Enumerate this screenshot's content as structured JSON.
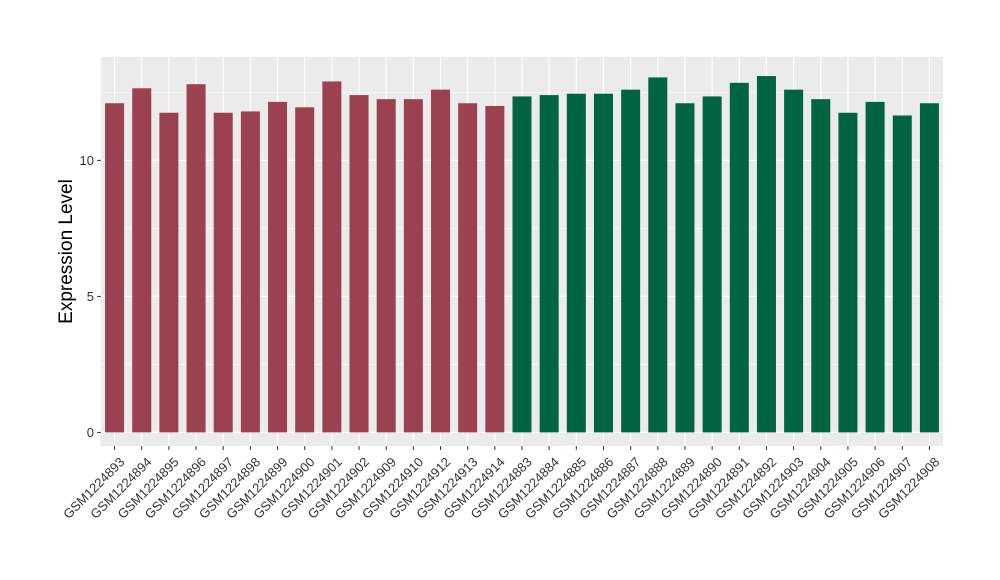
{
  "chart_data": {
    "type": "bar",
    "ylabel": "Expression Level",
    "xlabel": "",
    "title": "",
    "ylim": [
      -0.5,
      13.8
    ],
    "yticks": [
      0,
      5,
      10
    ],
    "ytick_labels": [
      "0",
      "5",
      "10"
    ],
    "grid": true,
    "legend": "none",
    "categories": [
      "GSM1224893",
      "GSM1224894",
      "GSM1224895",
      "GSM1224896",
      "GSM1224897",
      "GSM1224898",
      "GSM1224899",
      "GSM1224900",
      "GSM1224901",
      "GSM1224902",
      "GSM1224909",
      "GSM1224910",
      "GSM1224912",
      "GSM1224913",
      "GSM1224914",
      "GSM1224883",
      "GSM1224884",
      "GSM1224885",
      "GSM1224886",
      "GSM1224887",
      "GSM1224888",
      "GSM1224889",
      "GSM1224890",
      "GSM1224891",
      "GSM1224892",
      "GSM1224903",
      "GSM1224904",
      "GSM1224905",
      "GSM1224906",
      "GSM1224907",
      "GSM1224908"
    ],
    "values": [
      12.1,
      12.65,
      11.75,
      12.8,
      11.75,
      11.8,
      12.15,
      11.95,
      12.9,
      12.4,
      12.25,
      12.25,
      12.6,
      12.1,
      12.0,
      12.35,
      12.4,
      12.45,
      12.45,
      12.6,
      13.05,
      12.1,
      12.35,
      12.85,
      13.1,
      12.6,
      12.25,
      11.75,
      12.15,
      11.65,
      12.1
    ],
    "groups": [
      0,
      0,
      0,
      0,
      0,
      0,
      0,
      0,
      0,
      0,
      0,
      0,
      0,
      0,
      0,
      1,
      1,
      1,
      1,
      1,
      1,
      1,
      1,
      1,
      1,
      1,
      1,
      1,
      1,
      1,
      1
    ],
    "colors": [
      "#9b4150",
      "#016544"
    ],
    "panel_background": "#ebebeb",
    "grid_color": "#ffffff"
  }
}
